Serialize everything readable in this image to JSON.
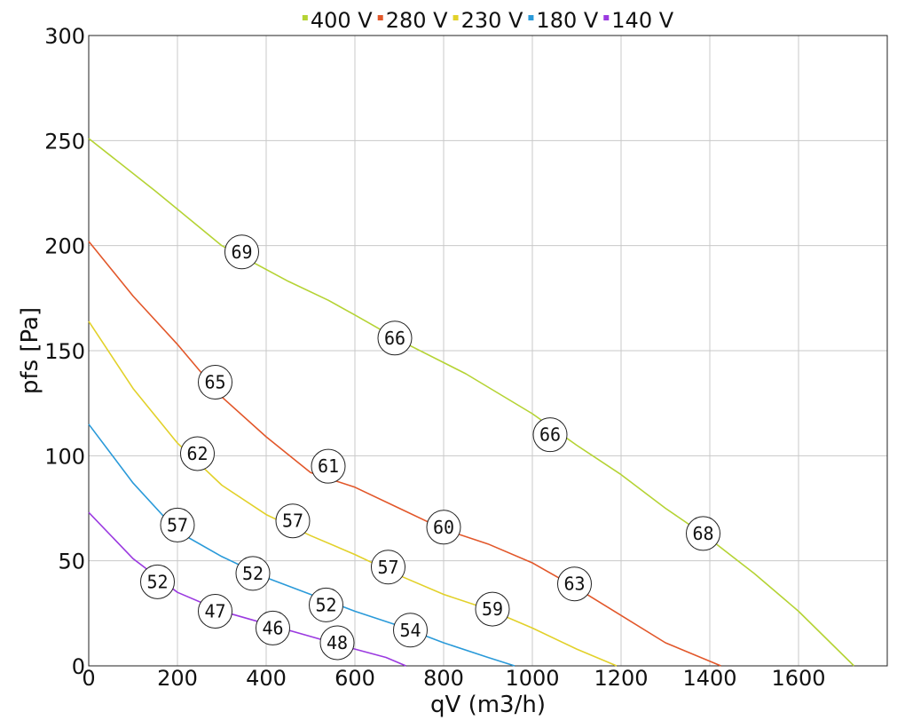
{
  "chart_data": {
    "type": "line",
    "xlabel": "qV (m3/h)",
    "ylabel": "pfs [Pa]",
    "xlim": [
      0,
      1800
    ],
    "ylim": [
      0,
      300
    ],
    "x_ticks": [
      0,
      200,
      400,
      600,
      800,
      1000,
      1200,
      1400,
      1600
    ],
    "y_ticks": [
      0,
      50,
      100,
      150,
      200,
      250,
      300
    ],
    "x_tick_labels": [
      "0",
      "200",
      "400",
      "600",
      "800",
      "1000",
      "1200",
      "1400",
      "1600"
    ],
    "y_tick_labels": [
      "0",
      "50",
      "100",
      "150",
      "200",
      "250",
      "300"
    ],
    "grid": true,
    "legend_position": "top-center",
    "series": [
      {
        "name": "400 V",
        "color": "#b5d334",
        "x": [
          0,
          150,
          300,
          450,
          540,
          600,
          700,
          850,
          1000,
          1100,
          1200,
          1300,
          1390,
          1500,
          1600,
          1725
        ],
        "y": [
          251,
          226,
          200,
          183,
          174,
          167,
          155,
          139,
          120,
          105,
          91,
          75,
          62,
          44,
          26,
          0
        ]
      },
      {
        "name": "280 V",
        "color": "#e2572a",
        "x": [
          0,
          100,
          200,
          300,
          400,
          500,
          600,
          700,
          800,
          900,
          1000,
          1100,
          1200,
          1300,
          1425
        ],
        "y": [
          202,
          176,
          153,
          128,
          109,
          92,
          85,
          75,
          65,
          58,
          49,
          37,
          24,
          11,
          0
        ]
      },
      {
        "name": "230 V",
        "color": "#e2d12a",
        "x": [
          0,
          100,
          200,
          300,
          400,
          500,
          600,
          700,
          800,
          900,
          1000,
          1100,
          1190
        ],
        "y": [
          164,
          132,
          106,
          86,
          72,
          62,
          53,
          43,
          34,
          27,
          18,
          8,
          0
        ]
      },
      {
        "name": "180 V",
        "color": "#2a9ad9",
        "x": [
          0,
          100,
          200,
          300,
          400,
          500,
          600,
          700,
          800,
          900,
          960
        ],
        "y": [
          115,
          87,
          64,
          52,
          42,
          34,
          26,
          19,
          11,
          4,
          0
        ]
      },
      {
        "name": "140 V",
        "color": "#9b3ae0",
        "x": [
          0,
          100,
          200,
          300,
          400,
          500,
          600,
          670,
          715
        ],
        "y": [
          73,
          51,
          35,
          26,
          20,
          14,
          8,
          4,
          0
        ]
      }
    ],
    "annotations": [
      {
        "series": "400 V",
        "label": "69",
        "x": 345,
        "y": 197
      },
      {
        "series": "400 V",
        "label": "66",
        "x": 690,
        "y": 156
      },
      {
        "series": "400 V",
        "label": "66",
        "x": 1040,
        "y": 110
      },
      {
        "series": "400 V",
        "label": "68",
        "x": 1385,
        "y": 63
      },
      {
        "series": "280 V",
        "label": "65",
        "x": 285,
        "y": 135
      },
      {
        "series": "280 V",
        "label": "61",
        "x": 540,
        "y": 95
      },
      {
        "series": "280 V",
        "label": "60",
        "x": 800,
        "y": 66
      },
      {
        "series": "280 V",
        "label": "63",
        "x": 1095,
        "y": 39
      },
      {
        "series": "230 V",
        "label": "62",
        "x": 245,
        "y": 101
      },
      {
        "series": "230 V",
        "label": "57",
        "x": 460,
        "y": 69
      },
      {
        "series": "230 V",
        "label": "57",
        "x": 675,
        "y": 47
      },
      {
        "series": "230 V",
        "label": "59",
        "x": 910,
        "y": 27
      },
      {
        "series": "180 V",
        "label": "57",
        "x": 200,
        "y": 67
      },
      {
        "series": "180 V",
        "label": "52",
        "x": 370,
        "y": 44
      },
      {
        "series": "180 V",
        "label": "52",
        "x": 535,
        "y": 29
      },
      {
        "series": "180 V",
        "label": "54",
        "x": 725,
        "y": 17
      },
      {
        "series": "140 V",
        "label": "52",
        "x": 155,
        "y": 40
      },
      {
        "series": "140 V",
        "label": "47",
        "x": 285,
        "y": 26
      },
      {
        "series": "140 V",
        "label": "46",
        "x": 415,
        "y": 18
      },
      {
        "series": "140 V",
        "label": "48",
        "x": 560,
        "y": 11
      }
    ]
  }
}
